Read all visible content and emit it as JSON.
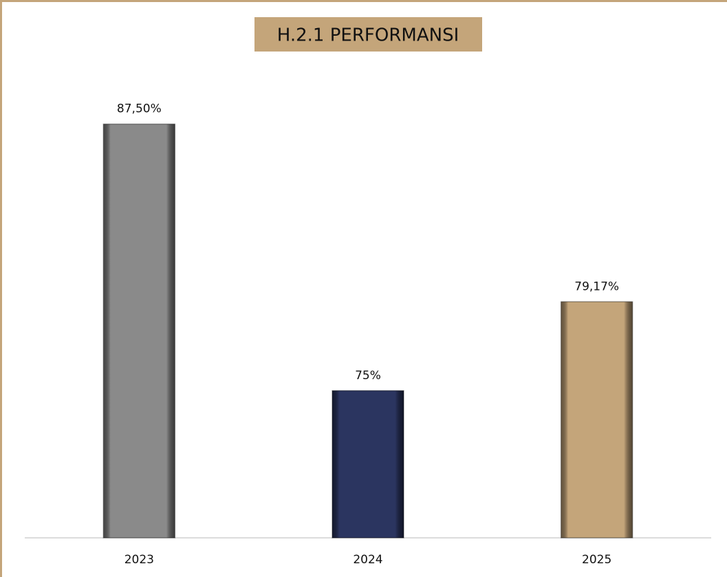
{
  "chart_data": {
    "type": "bar",
    "title": "H.2.1 PERFORMANSI",
    "categories": [
      "2023",
      "2024",
      "2025"
    ],
    "values": [
      87.5,
      75,
      79.17
    ],
    "value_labels": [
      "87,50%",
      "75%",
      "79,17%"
    ],
    "colors": [
      "#8a8a8a",
      "#2b3560",
      "#c4a57a"
    ],
    "ylim": [
      68.1,
      90
    ]
  }
}
